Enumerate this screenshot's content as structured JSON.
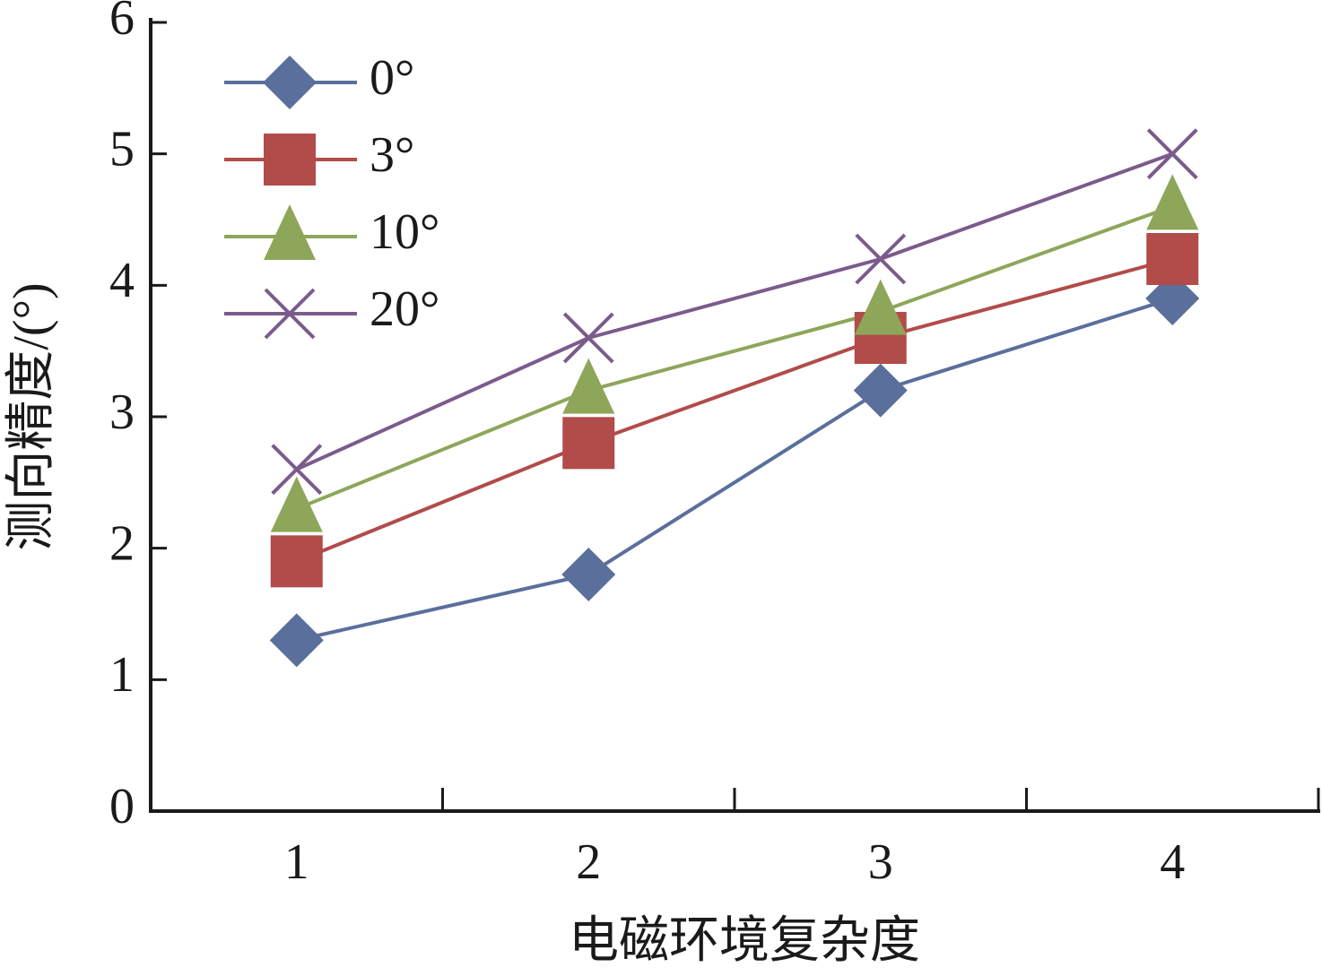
{
  "chart_data": {
    "type": "line",
    "x_label": "电磁环境复杂度",
    "y_label": "测向精度/(°)",
    "categories": [
      "1",
      "2",
      "3",
      "4"
    ],
    "series": [
      {
        "name": "0°",
        "color": "#5a6f9c",
        "marker": "diamond",
        "values": [
          1.3,
          1.8,
          3.2,
          3.9
        ]
      },
      {
        "name": "3°",
        "color": "#b14c4a",
        "marker": "square",
        "values": [
          1.9,
          2.8,
          3.6,
          4.2
        ]
      },
      {
        "name": "10°",
        "color": "#8ea65a",
        "marker": "triangle",
        "values": [
          2.3,
          3.2,
          3.8,
          4.6
        ]
      },
      {
        "name": "20°",
        "color": "#7b5b8c",
        "marker": "x",
        "values": [
          2.6,
          3.6,
          4.2,
          5.0
        ]
      }
    ],
    "ylim": [
      0,
      6
    ],
    "yticks": [
      0,
      1,
      2,
      3,
      4,
      5,
      6
    ],
    "grid": false,
    "legend": "upper left"
  }
}
